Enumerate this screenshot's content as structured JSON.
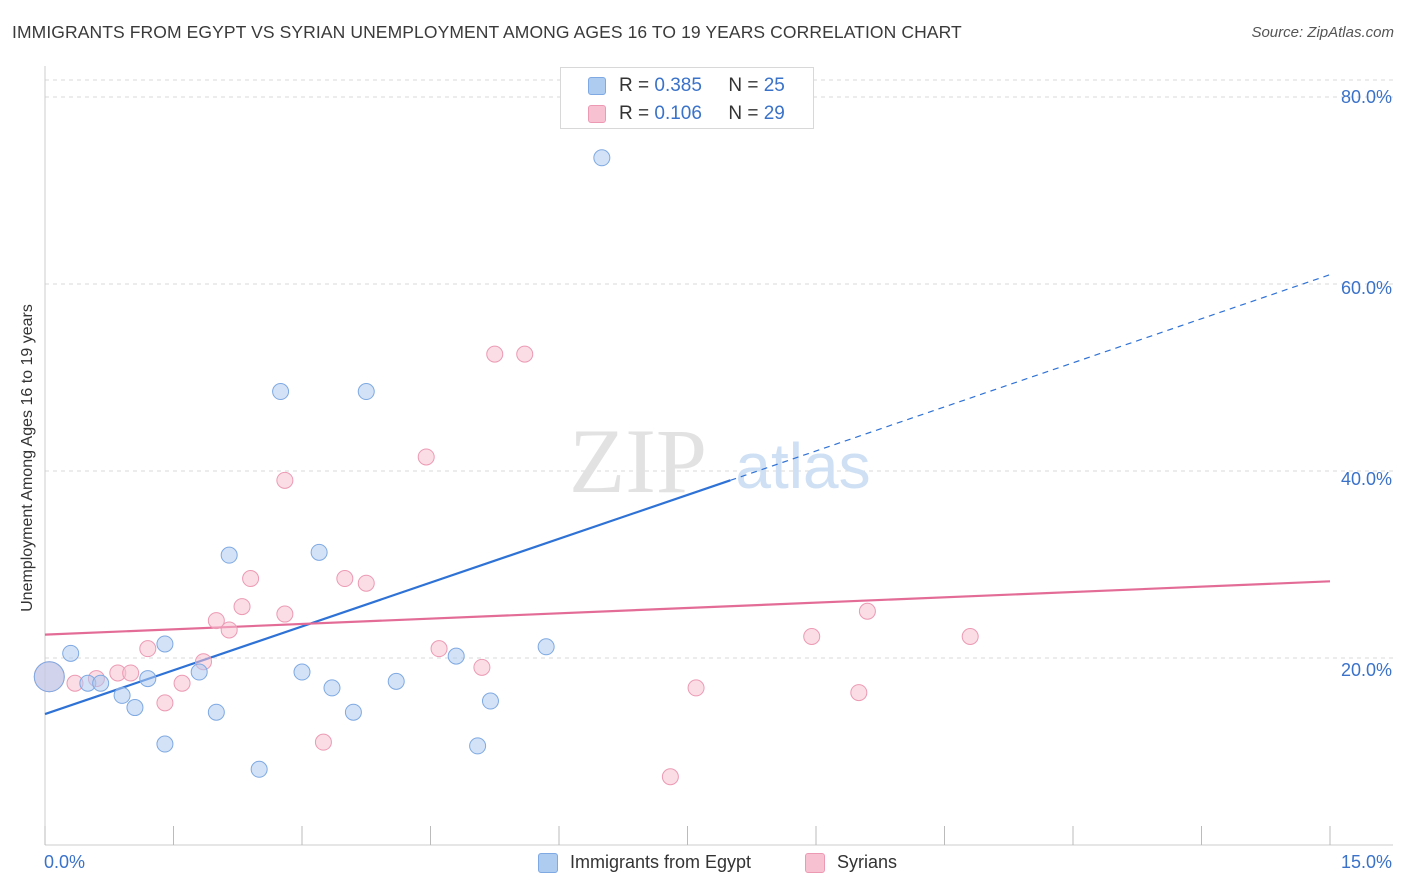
{
  "header": {
    "title": "IMMIGRANTS FROM EGYPT VS SYRIAN UNEMPLOYMENT AMONG AGES 16 TO 19 YEARS CORRELATION CHART",
    "source": "Source: ZipAtlas.com"
  },
  "watermark": {
    "zip": "ZIP",
    "atlas": "atlas"
  },
  "legend": {
    "r_label": "R =",
    "n_label": "N =",
    "series": [
      {
        "r": "0.385",
        "n": "25"
      },
      {
        "r": "0.106",
        "n": "29"
      }
    ]
  },
  "bottom_legend": [
    "Immigrants from Egypt",
    "Syrians"
  ],
  "colors": {
    "egypt_fill": "#aecbf0",
    "egypt_stroke": "#7ea9e2",
    "egypt_line": "#2f72d6",
    "syrian_fill": "#f7c1d2",
    "syrian_stroke": "#ec9ab4",
    "syrian_line": "#e36c97",
    "tick_label": "#3a72c9"
  },
  "chart_data": {
    "type": "scatter",
    "xlabel": "",
    "ylabel": "Unemployment Among Ages 16 to 19 years",
    "xlim": [
      0,
      15
    ],
    "ylim": [
      0,
      80
    ],
    "x_tick_labels": [
      "0.0%",
      "15.0%"
    ],
    "y_ticks": [
      20,
      40,
      60,
      80
    ],
    "y_tick_labels": [
      "20.0%",
      "40.0%",
      "60.0%",
      "80.0%"
    ],
    "grid": true,
    "legend_position": "top-center",
    "series": [
      {
        "name": "Immigrants from Egypt",
        "points": [
          [
            0.05,
            18.0
          ],
          [
            0.3,
            20.5
          ],
          [
            0.5,
            17.3
          ],
          [
            0.65,
            17.3
          ],
          [
            0.9,
            16.0
          ],
          [
            1.05,
            14.7
          ],
          [
            1.2,
            17.8
          ],
          [
            1.4,
            10.8
          ],
          [
            1.4,
            21.5
          ],
          [
            1.8,
            18.5
          ],
          [
            2.0,
            14.2
          ],
          [
            2.15,
            31.0
          ],
          [
            2.5,
            8.1
          ],
          [
            2.75,
            48.5
          ],
          [
            3.0,
            18.5
          ],
          [
            3.2,
            31.3
          ],
          [
            3.35,
            16.8
          ],
          [
            3.6,
            14.2
          ],
          [
            3.75,
            48.5
          ],
          [
            4.1,
            17.5
          ],
          [
            4.8,
            20.2
          ],
          [
            5.05,
            10.6
          ],
          [
            5.2,
            15.4
          ],
          [
            5.85,
            21.2
          ],
          [
            6.5,
            73.5
          ]
        ],
        "trend": {
          "x0": 0,
          "y0": 14.0,
          "x1": 8.0,
          "y1": 39.0,
          "dashed_to_x": 15,
          "dashed_to_y": 61.0
        }
      },
      {
        "name": "Syrians",
        "points": [
          [
            0.05,
            18.0
          ],
          [
            0.35,
            17.3
          ],
          [
            0.6,
            17.8
          ],
          [
            0.85,
            18.4
          ],
          [
            1.0,
            18.4
          ],
          [
            1.2,
            21.0
          ],
          [
            1.4,
            15.2
          ],
          [
            1.6,
            17.3
          ],
          [
            1.85,
            19.6
          ],
          [
            2.0,
            24.0
          ],
          [
            2.15,
            23.0
          ],
          [
            2.3,
            25.5
          ],
          [
            2.4,
            28.5
          ],
          [
            2.8,
            24.7
          ],
          [
            2.8,
            39.0
          ],
          [
            3.25,
            11.0
          ],
          [
            3.5,
            28.5
          ],
          [
            3.75,
            28.0
          ],
          [
            4.45,
            41.5
          ],
          [
            4.6,
            21.0
          ],
          [
            5.1,
            19.0
          ],
          [
            5.25,
            52.5
          ],
          [
            5.6,
            52.5
          ],
          [
            7.3,
            7.3
          ],
          [
            7.6,
            16.8
          ],
          [
            8.95,
            22.3
          ],
          [
            9.5,
            16.3
          ],
          [
            9.6,
            25.0
          ],
          [
            10.8,
            22.3
          ]
        ],
        "trend": {
          "x0": 0,
          "y0": 22.5,
          "x1": 15,
          "y1": 28.2
        }
      }
    ]
  }
}
